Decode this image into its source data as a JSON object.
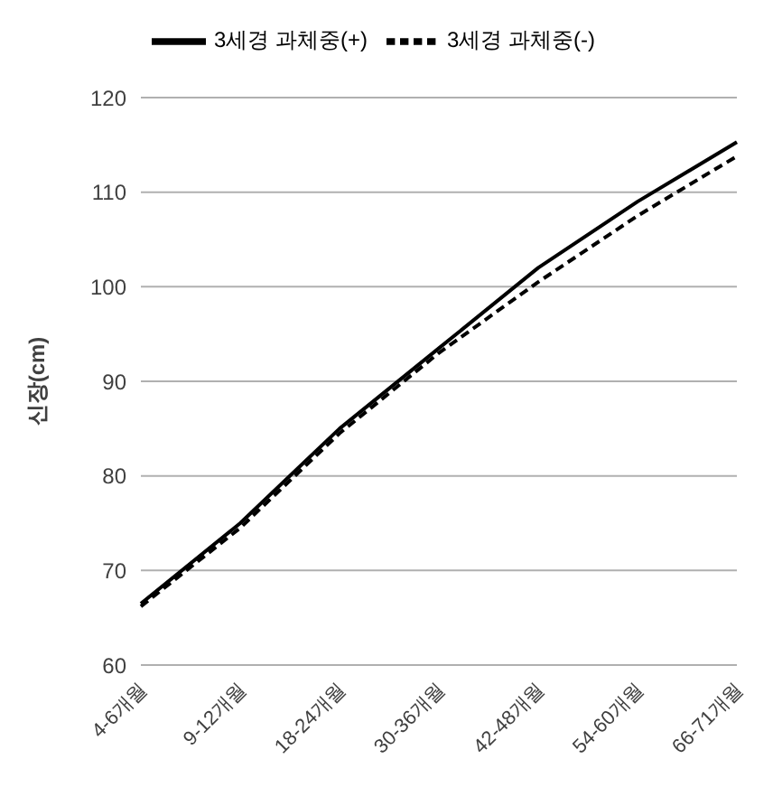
{
  "chart_data": {
    "type": "line",
    "ylabel": "신장(cm)",
    "categories": [
      "4-6개월",
      "9-12개월",
      "18-24개월",
      "30-36개월",
      "42-48개월",
      "54-60개월",
      "66-71개월"
    ],
    "series": [
      {
        "name": "3세경 과체중(+)",
        "color": "#000000",
        "line_style": "solid",
        "values": [
          66.5,
          75,
          85,
          93.5,
          102,
          109,
          115.3
        ]
      },
      {
        "name": "3세경 과체중(-)",
        "color": "#000000",
        "line_style": "dashed",
        "values": [
          66.2,
          74.5,
          84.5,
          93,
          100.5,
          107.5,
          113.8
        ]
      }
    ],
    "ylim": [
      60,
      120
    ],
    "yticks": [
      60,
      70,
      80,
      90,
      100,
      110,
      120
    ],
    "grid": "y",
    "legend": "top",
    "marker": "none"
  }
}
